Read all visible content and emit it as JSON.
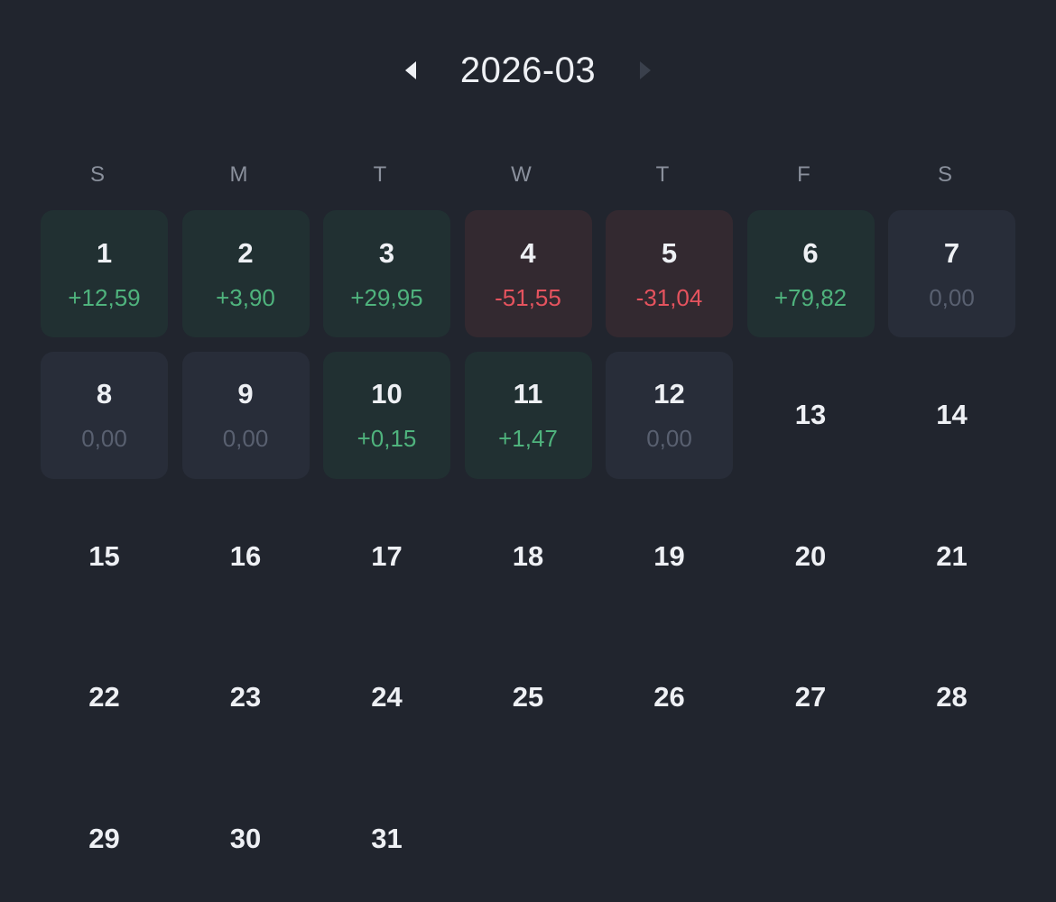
{
  "header": {
    "month": "2026-03"
  },
  "weekdays": [
    "S",
    "M",
    "T",
    "W",
    "T",
    "F",
    "S"
  ],
  "colors": {
    "background": "#21252e",
    "positive": "#4fb37d",
    "negative": "#e5535e",
    "zero": "#596070"
  },
  "days": [
    {
      "day": "1",
      "pnl": "+12,59",
      "status": "pos"
    },
    {
      "day": "2",
      "pnl": "+3,90",
      "status": "pos"
    },
    {
      "day": "3",
      "pnl": "+29,95",
      "status": "pos"
    },
    {
      "day": "4",
      "pnl": "-51,55",
      "status": "neg"
    },
    {
      "day": "5",
      "pnl": "-31,04",
      "status": "neg"
    },
    {
      "day": "6",
      "pnl": "+79,82",
      "status": "pos"
    },
    {
      "day": "7",
      "pnl": "0,00",
      "status": "zero"
    },
    {
      "day": "8",
      "pnl": "0,00",
      "status": "zero"
    },
    {
      "day": "9",
      "pnl": "0,00",
      "status": "zero"
    },
    {
      "day": "10",
      "pnl": "+0,15",
      "status": "pos"
    },
    {
      "day": "11",
      "pnl": "+1,47",
      "status": "pos"
    },
    {
      "day": "12",
      "pnl": "0,00",
      "status": "zero"
    },
    {
      "day": "13"
    },
    {
      "day": "14"
    },
    {
      "day": "15"
    },
    {
      "day": "16"
    },
    {
      "day": "17"
    },
    {
      "day": "18"
    },
    {
      "day": "19"
    },
    {
      "day": "20"
    },
    {
      "day": "21"
    },
    {
      "day": "22"
    },
    {
      "day": "23"
    },
    {
      "day": "24"
    },
    {
      "day": "25"
    },
    {
      "day": "26"
    },
    {
      "day": "27"
    },
    {
      "day": "28"
    },
    {
      "day": "29"
    },
    {
      "day": "30"
    },
    {
      "day": "31"
    }
  ]
}
